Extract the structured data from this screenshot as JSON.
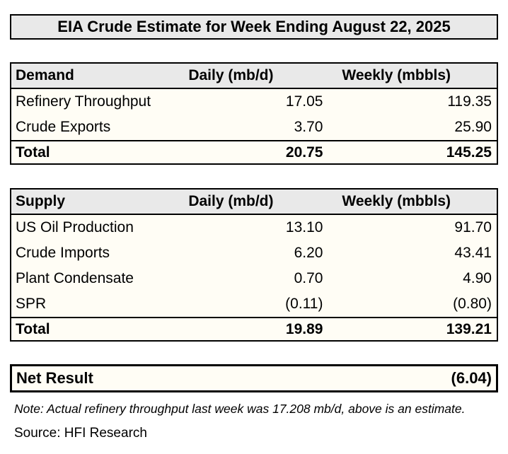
{
  "title": "EIA Crude Estimate for Week Ending August 22, 2025",
  "colors": {
    "header_band_bg": "#e9e9e9",
    "table_body_bg": "#fffdf5",
    "border": "#000000",
    "text": "#000000",
    "page_bg": "#ffffff"
  },
  "tables": [
    {
      "name": "demand",
      "header": {
        "label": "Demand",
        "daily": "Daily (mb/d)",
        "weekly": "Weekly (mbbls)"
      },
      "rows": [
        {
          "label": "Refinery Throughput",
          "daily": "17.05",
          "weekly": "119.35"
        },
        {
          "label": "Crude Exports",
          "daily": "3.70",
          "weekly": "25.90"
        }
      ],
      "total": {
        "label": "Total",
        "daily": "20.75",
        "weekly": "145.25"
      }
    },
    {
      "name": "supply",
      "header": {
        "label": "Supply",
        "daily": "Daily (mb/d)",
        "weekly": "Weekly (mbbls)"
      },
      "rows": [
        {
          "label": "US Oil Production",
          "daily": "13.10",
          "weekly": "91.70"
        },
        {
          "label": "Crude Imports",
          "daily": "6.20",
          "weekly": "43.41"
        },
        {
          "label": "Plant Condensate",
          "daily": "0.70",
          "weekly": "4.90"
        },
        {
          "label": "SPR",
          "daily": "(0.11)",
          "weekly": "(0.80)"
        }
      ],
      "total": {
        "label": "Total",
        "daily": "19.89",
        "weekly": "139.21"
      }
    }
  ],
  "net_result": {
    "label": "Net Result",
    "value": "(6.04)"
  },
  "note": "Note: Actual refinery throughput last week was 17.208 mb/d, above is an estimate.",
  "source": "Source: HFI Research"
}
